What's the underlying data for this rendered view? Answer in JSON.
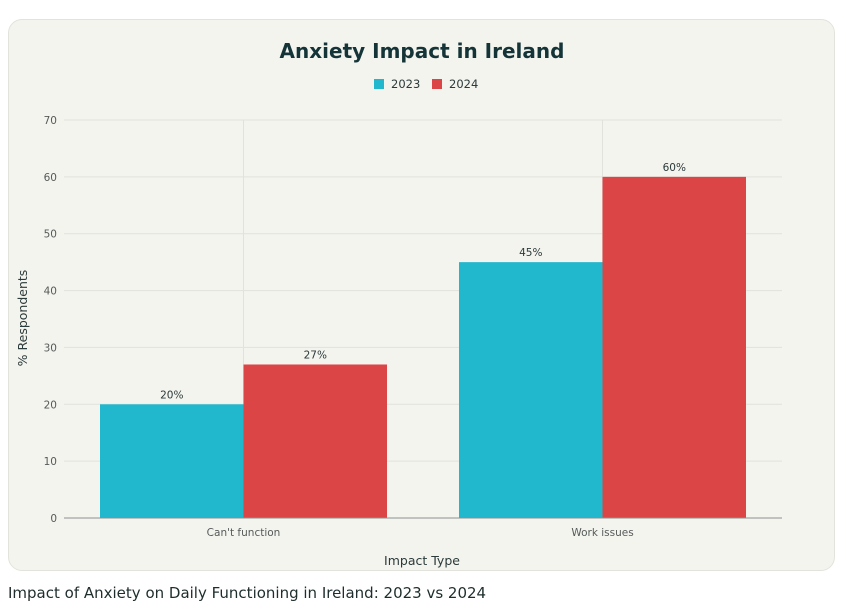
{
  "chart_data": {
    "type": "bar",
    "title": "Anxiety Impact in Ireland",
    "xlabel": "Impact Type",
    "ylabel": "% Respondents",
    "categories": [
      "Can't function",
      "Work issues"
    ],
    "series": [
      {
        "name": "2023",
        "values": [
          20,
          45
        ],
        "color": "#21b7cd",
        "labels": [
          "20%",
          "45%"
        ]
      },
      {
        "name": "2024",
        "values": [
          27,
          60
        ],
        "color": "#db4545",
        "labels": [
          "27%",
          "60%"
        ]
      }
    ],
    "ylim": [
      0,
      70
    ],
    "yticks": [
      0,
      10,
      20,
      30,
      40,
      50,
      60,
      70
    ],
    "grid": true,
    "legend_position": "top-center"
  },
  "caption": "Impact of Anxiety on Daily Functioning in Ireland: 2023 vs 2024"
}
